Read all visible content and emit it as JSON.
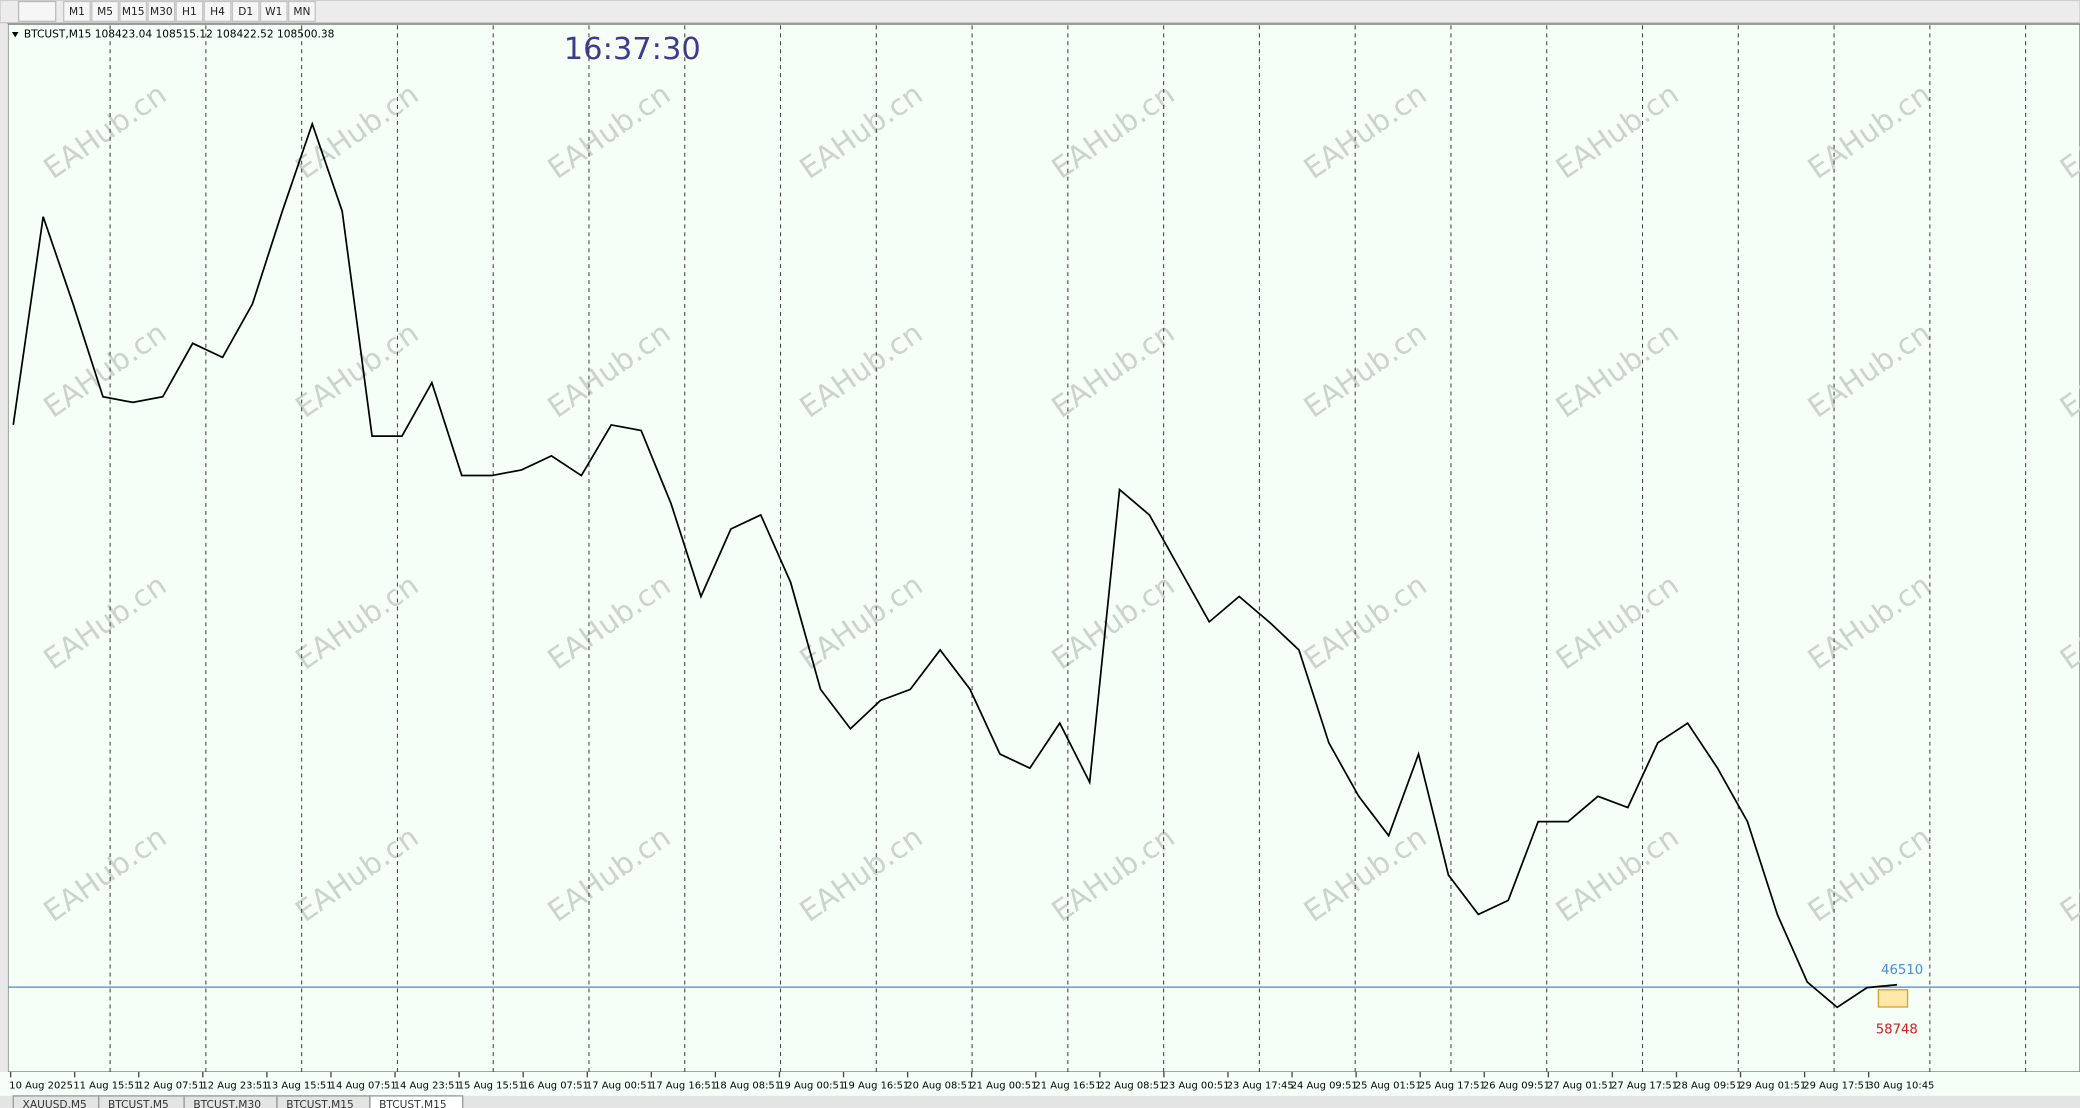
{
  "toolbar": {
    "timeframes": [
      "M1",
      "M5",
      "M15",
      "M30",
      "H1",
      "H4",
      "D1",
      "W1",
      "MN"
    ]
  },
  "chart_data": {
    "type": "line",
    "header": "BTCUST,M15  108423.04 108515.12 108422.52 108500.38",
    "clock": "16:37:30",
    "watermark": "EAHub.cn",
    "color": "#000000",
    "ylim": [
      107000,
      125600
    ],
    "values": [
      118500,
      122200,
      120650,
      119000,
      118900,
      119000,
      119950,
      119700,
      120650,
      122300,
      123850,
      122300,
      118300,
      118300,
      119250,
      117600,
      117600,
      117700,
      117950,
      117600,
      118500,
      118400,
      117100,
      115450,
      116650,
      116900,
      115700,
      113800,
      113100,
      113600,
      113800,
      114500,
      113800,
      112650,
      112400,
      113200,
      112150,
      117350,
      116900,
      115950,
      115000,
      115450,
      115000,
      114500,
      112850,
      111900,
      111200,
      112650,
      110500,
      109800,
      110050,
      111450,
      111450,
      111900,
      111700,
      112850,
      113200,
      112400,
      111450,
      109800,
      108600,
      108150,
      108500,
      108550
    ],
    "price_labels": [
      "46510",
      "58748"
    ],
    "x_labels": [
      "10 Aug 2025",
      "11 Aug 15:51",
      "12 Aug 07:51",
      "12 Aug 23:51",
      "13 Aug 15:51",
      "14 Aug 07:51",
      "14 Aug 23:51",
      "15 Aug 15:51",
      "16 Aug 07:51",
      "17 Aug 00:51",
      "17 Aug 16:51",
      "18 Aug 08:51",
      "19 Aug 00:51",
      "19 Aug 16:51",
      "20 Aug 08:51",
      "21 Aug 00:51",
      "21 Aug 16:51",
      "22 Aug 08:51",
      "23 Aug 00:51",
      "23 Aug 17:45",
      "24 Aug 09:51",
      "25 Aug 01:51",
      "25 Aug 17:51",
      "26 Aug 09:51",
      "27 Aug 01:51",
      "27 Aug 17:51",
      "28 Aug 09:51",
      "29 Aug 01:51",
      "29 Aug 17:51",
      "30 Aug 10:45"
    ]
  },
  "tabs": [
    "XAUUSD,M5",
    "BTCUST,M5",
    "BTCUST,M30",
    "BTCUST,M15",
    "BTCUST,M15"
  ]
}
